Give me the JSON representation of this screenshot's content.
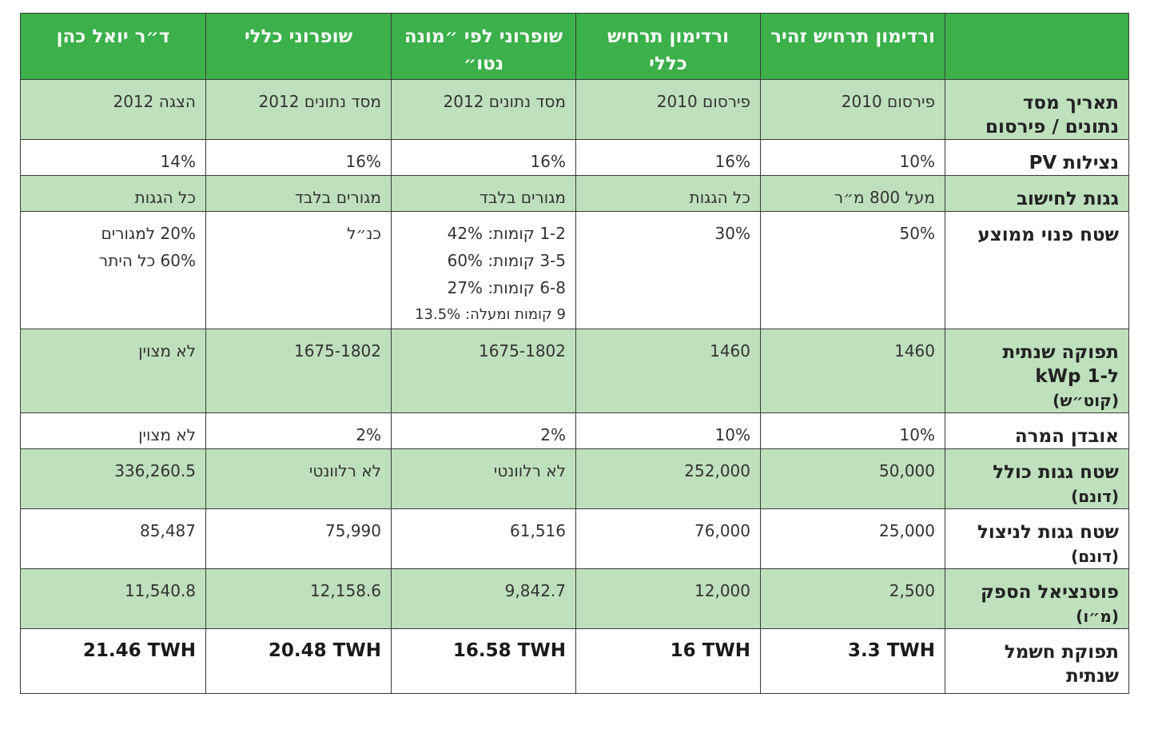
{
  "headers": [
    "",
    "ורדימון תרחיש זהיר",
    "ורדימון תרחיש כללי",
    "שופרוני לפי ״מונה נטו״",
    "שופרוני כללי",
    "ד״ר יואל כהן"
  ],
  "rows": [
    {
      "label": "תאריך מסד",
      "sub": "נתונים / פירסום",
      "values": [
        [
          "פירסום 2010"
        ],
        [
          "פירסום 2010"
        ],
        [
          "מסד נתונים 2012"
        ],
        [
          "מסד נתונים 2012"
        ],
        [
          "הצגה 2012"
        ]
      ]
    },
    {
      "label": "נצילות PV",
      "sub": "",
      "values": [
        [
          "10%"
        ],
        [
          "16%"
        ],
        [
          "16%"
        ],
        [
          "16%"
        ],
        [
          "14%"
        ]
      ]
    },
    {
      "label": "גגות לחישוב",
      "sub": "",
      "values": [
        [
          "מעל 800 מ״ר"
        ],
        [
          "כל הגגות"
        ],
        [
          "מגורים בלבד"
        ],
        [
          "מגורים בלבד"
        ],
        [
          "כל הגגות"
        ]
      ]
    },
    {
      "label": "שטח פנוי ממוצע",
      "sub": "",
      "values": [
        [
          "50%"
        ],
        [
          "30%"
        ],
        [
          "1-2 קומות: 42%",
          "3-5 קומות: 60%",
          "6-8 קומות: 27%",
          "9 קומות ומעלה: 13.5%"
        ],
        [
          "כנ״ל"
        ],
        [
          "20% למגורים",
          "60% כל היתר"
        ]
      ]
    },
    {
      "label": "תפוקה שנתית",
      "sub": "ל-1 kWp",
      "sub2": "(קוט״ש)",
      "values": [
        [
          "1460"
        ],
        [
          "1460"
        ],
        [
          "1675-1802"
        ],
        [
          "1675-1802"
        ],
        [
          "לא מצוין"
        ]
      ]
    },
    {
      "label": "אובדן המרה",
      "sub": "",
      "values": [
        [
          "10%"
        ],
        [
          "10%"
        ],
        [
          "2%"
        ],
        [
          "2%"
        ],
        [
          "לא מצוין"
        ]
      ]
    },
    {
      "label": "שטח גגות כולל",
      "sub": "(דונם)",
      "values": [
        [
          "50,000"
        ],
        [
          "252,000"
        ],
        [
          "לא רלוונטי"
        ],
        [
          "לא רלוונטי"
        ],
        [
          "336,260.5"
        ]
      ]
    },
    {
      "label": "שטח גגות לניצול",
      "sub": "(דונם)",
      "values": [
        [
          "25,000"
        ],
        [
          "76,000"
        ],
        [
          "61,516"
        ],
        [
          "75,990"
        ],
        [
          "85,487"
        ]
      ]
    },
    {
      "label": "פוטנציאל הספק",
      "sub": "(מ״ו)",
      "values": [
        [
          "2,500"
        ],
        [
          "12,000"
        ],
        [
          "9,842.7"
        ],
        [
          "12,158.6"
        ],
        [
          "11,540.8"
        ]
      ]
    },
    {
      "label": "תפוקת חשמל",
      "sub": "שנתית",
      "values": [
        [
          "3.3 TWH"
        ],
        [
          "16 TWH"
        ],
        [
          "16.58 TWH"
        ],
        [
          "20.48 TWH"
        ],
        [
          "21.46 TWH"
        ]
      ]
    }
  ],
  "colors": {
    "header_bg": "#3cb04a",
    "row_green": "#bfe0bd",
    "row_white": "#ffffff"
  }
}
